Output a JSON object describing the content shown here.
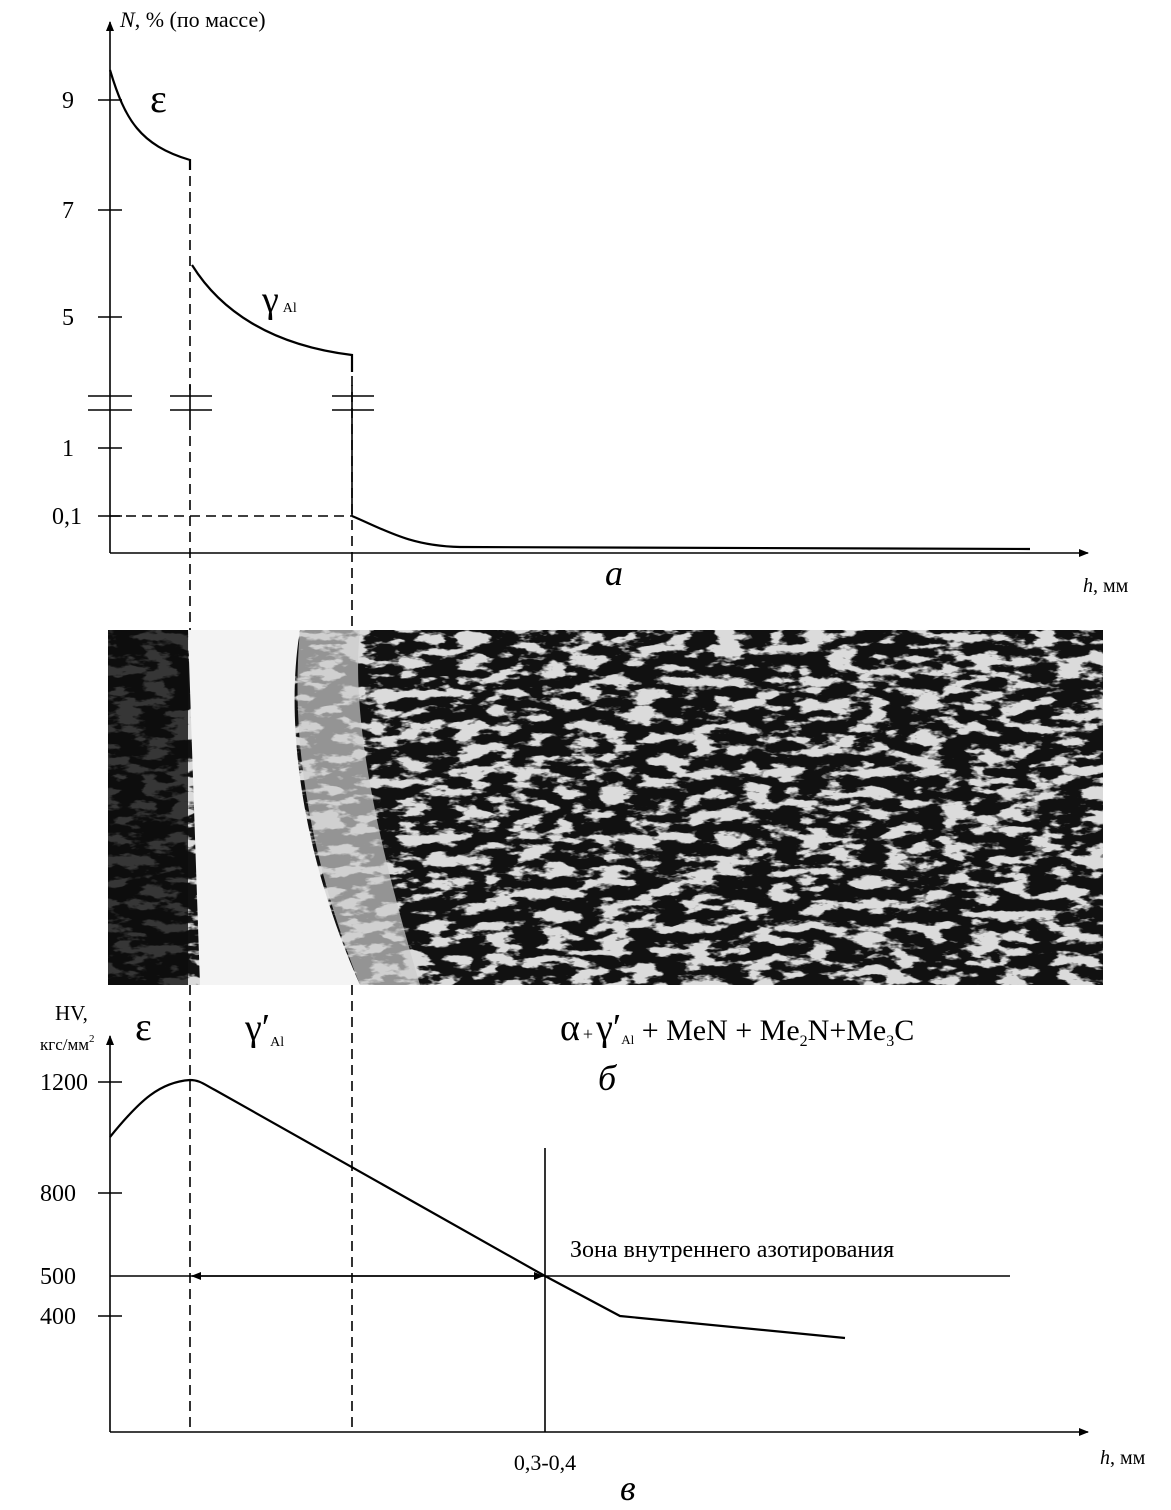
{
  "panel_a": {
    "y_axis_label": {
      "symbol": "N",
      "rest": ", % (по массе)"
    },
    "yticks": [
      "9",
      "7",
      "5",
      "1",
      "0,1"
    ],
    "x_axis_label": {
      "symbol": "h",
      "rest": ", мм"
    },
    "phase_epsilon": "ε",
    "phase_gamma": {
      "symbol": "γ",
      "sub": "Al"
    },
    "caption": "а"
  },
  "panel_b": {
    "phase_epsilon": "ε",
    "phase_gamma": {
      "symbol": "γ′",
      "sub": "Al"
    },
    "phase_mix": {
      "alpha": "α",
      "plus": "+",
      "gamma": "γ′",
      "sub": "Al",
      "part1": " + MeN + Me",
      "sub2": "2",
      "part2": "N+Me",
      "sub3": "3",
      "part3": "C"
    },
    "caption": "б"
  },
  "panel_c": {
    "y_axis_label": {
      "line1": "HV,",
      "line2": "кгс/мм",
      "sup": "2"
    },
    "yticks": [
      "1200",
      "800",
      "500",
      "400"
    ],
    "zone_label": "Зона внутреннего азотирования",
    "x_tick": "0,3-0,4",
    "x_axis_label": {
      "symbol": "h",
      "rest": ", мм"
    },
    "caption": "в"
  }
}
